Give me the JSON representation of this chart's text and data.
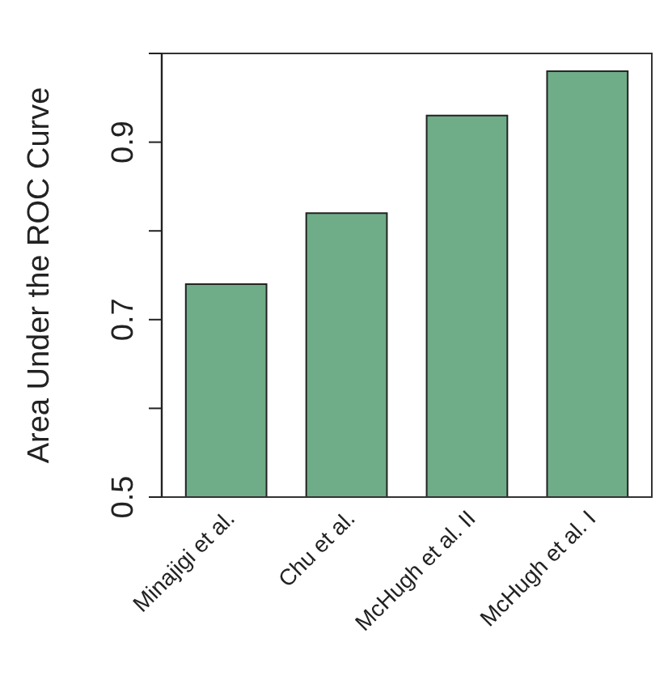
{
  "chart_data": {
    "type": "bar",
    "ylabel": "Area Under the ROC Curve",
    "categories": [
      "Minajigi et al.",
      "Chu et al.",
      "McHugh et al. II",
      "McHugh et al. I"
    ],
    "values": [
      0.74,
      0.82,
      0.93,
      0.98
    ],
    "color": "#6fad88",
    "ylim": [
      0.5,
      1.0
    ],
    "yticks": [
      0.5,
      {
        "value": 0.6,
        "label": null
      },
      0.7,
      {
        "value": 0.8,
        "label": null
      },
      0.9,
      {
        "value": 1.0,
        "label": null
      }
    ],
    "grid": false
  }
}
